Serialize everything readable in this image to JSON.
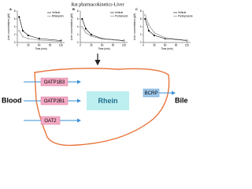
{
  "title": "Rat pharmacokinetics-Liver",
  "chart_data": [
    {
      "type": "line",
      "label": "A",
      "xlabel": "Time (min)",
      "ylabel": "Liver concentration (μM)",
      "x": [
        5,
        15,
        30,
        60,
        120
      ],
      "xlim": [
        0,
        130
      ],
      "ylim": [
        0,
        8
      ],
      "xticks": [
        0,
        30,
        60,
        90,
        120
      ],
      "yticks": [
        0,
        2,
        4,
        6,
        8
      ],
      "series": [
        {
          "name": "Vehicle",
          "color": "#000000",
          "values": [
            6.5,
            3,
            1.8,
            1,
            0.5
          ]
        },
        {
          "name": "Rifampicin",
          "color": "#777777",
          "values": [
            3,
            1.5,
            1,
            0.6,
            0.3
          ]
        }
      ]
    },
    {
      "type": "line",
      "label": "B",
      "xlabel": "Time (min)",
      "ylabel": "Liver concentration (μM)",
      "x": [
        5,
        15,
        30,
        60,
        120
      ],
      "xlim": [
        0,
        130
      ],
      "ylim": [
        0,
        8
      ],
      "xticks": [
        0,
        30,
        60,
        90,
        120
      ],
      "yticks": [
        0,
        2,
        4,
        6,
        8
      ],
      "series": [
        {
          "name": "Vehicle",
          "color": "#000000",
          "values": [
            6,
            3.5,
            2,
            1,
            0.5
          ]
        },
        {
          "name": "Probenecid",
          "color": "#777777",
          "values": [
            4,
            2.5,
            1.6,
            0.9,
            0.4
          ]
        }
      ]
    },
    {
      "type": "line",
      "label": "C",
      "xlabel": "Time (min)",
      "ylabel": "Liver concentration (μM)",
      "x": [
        5,
        15,
        30,
        60,
        120
      ],
      "xlim": [
        0,
        130
      ],
      "ylim": [
        0,
        8
      ],
      "xticks": [
        0,
        30,
        60,
        90,
        120
      ],
      "yticks": [
        0,
        2,
        4,
        6,
        8
      ],
      "series": [
        {
          "name": "Vehicle",
          "color": "#000000",
          "values": [
            6,
            3,
            1.8,
            1,
            0.5
          ]
        },
        {
          "name": "Pantoprazole",
          "color": "#777777",
          "values": [
            7,
            4.5,
            2.5,
            1.2,
            0.6
          ]
        }
      ]
    }
  ],
  "diagram": {
    "blood": "Blood",
    "bile": "Bile",
    "drug": "Rhein",
    "efflux": "BCRP",
    "uptake": [
      "OATP1B3",
      "OATP2B1",
      "OAT2"
    ]
  }
}
